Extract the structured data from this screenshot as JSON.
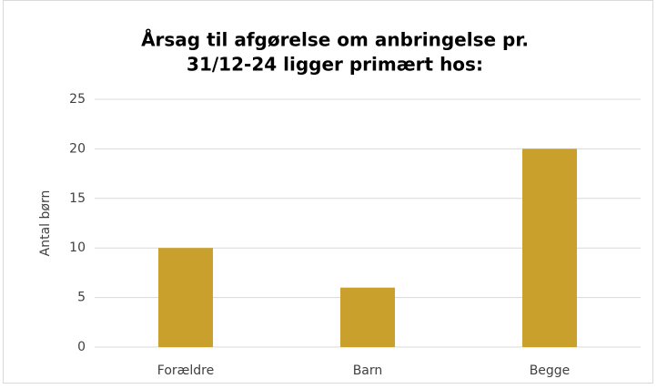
{
  "chart_data": {
    "type": "bar",
    "title": [
      "Årsag til afgørelse om anbringelse pr.",
      "31/12-24 ligger primært hos:"
    ],
    "ylabel": "Antal børn",
    "categories": [
      "Forældre",
      "Barn",
      "Begge"
    ],
    "values": [
      10,
      6,
      20
    ],
    "color": "#c9a02b",
    "ylim": [
      0,
      25
    ],
    "yticks": [
      0,
      5,
      10,
      15,
      20,
      25
    ],
    "grid": true
  }
}
